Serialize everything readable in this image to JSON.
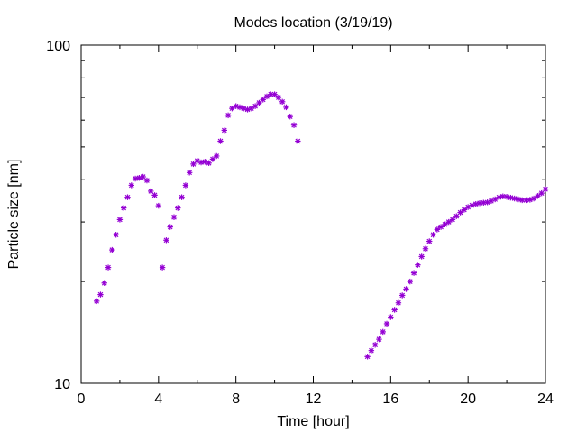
{
  "chart_data": {
    "type": "scatter",
    "title": "Modes location (3/19/19)",
    "xlabel": "Time [hour]",
    "ylabel": "Particle size [nm]",
    "xlim": [
      0,
      24
    ],
    "ylim": [
      10,
      100
    ],
    "yscale": "log",
    "grid": false,
    "marker": "asterisk",
    "x_ticks": [
      0,
      4,
      8,
      12,
      16,
      20,
      24
    ],
    "x_tick_labels": [
      "0",
      "4",
      "8",
      "12",
      "16",
      "20",
      "24"
    ],
    "y_ticks": [
      10,
      100
    ],
    "y_tick_labels": [
      "10",
      "100"
    ],
    "colors": {
      "series": "#9400d3"
    },
    "series": [
      {
        "segments": [
          {
            "x": [
              0.8,
              1.0,
              1.2,
              1.4,
              1.6,
              1.8,
              2.0,
              2.2,
              2.4,
              2.6,
              2.8,
              3.0,
              3.2,
              3.4,
              3.6,
              3.8,
              4.0
            ],
            "y": [
              17.5,
              18.3,
              19.8,
              22.0,
              24.8,
              27.5,
              30.5,
              33.0,
              35.5,
              38.5,
              40.3,
              40.5,
              40.8,
              39.8,
              37.0,
              36.0,
              33.5
            ]
          },
          {
            "x": [
              4.2,
              4.4,
              4.6,
              4.8,
              5.0,
              5.2,
              5.4,
              5.6,
              5.8,
              6.0,
              6.2,
              6.4,
              6.6,
              6.8,
              7.0,
              7.2,
              7.4,
              7.6,
              7.8,
              8.0,
              8.2,
              8.4,
              8.6,
              8.8,
              9.0,
              9.2,
              9.4,
              9.6,
              9.8,
              10.0,
              10.2,
              10.4,
              10.6,
              10.8,
              11.0,
              11.2
            ],
            "y": [
              22.0,
              26.5,
              29.0,
              31.0,
              33.0,
              35.5,
              38.5,
              42.0,
              44.5,
              45.5,
              45.0,
              45.2,
              44.8,
              46.0,
              47.0,
              52.0,
              56.0,
              62.0,
              65.0,
              66.0,
              65.5,
              65.0,
              64.5,
              65.0,
              66.0,
              67.5,
              69.0,
              70.5,
              71.5,
              71.5,
              70.0,
              68.0,
              65.5,
              61.5,
              58.0,
              52.0
            ]
          },
          {
            "x": [
              14.8,
              15.0,
              15.2,
              15.4,
              15.6,
              15.8,
              16.0,
              16.2,
              16.4,
              16.6,
              16.8,
              17.0,
              17.2,
              17.4,
              17.6,
              17.8,
              18.0,
              18.2,
              18.4,
              18.6,
              18.8,
              19.0,
              19.2,
              19.4,
              19.6,
              19.8,
              20.0,
              20.2,
              20.4,
              20.6,
              20.8,
              21.0,
              21.2,
              21.4,
              21.6,
              21.8,
              22.0,
              22.2,
              22.4,
              22.6,
              22.8,
              23.0,
              23.2,
              23.4,
              23.6,
              23.8,
              24.0
            ],
            "y": [
              12.0,
              12.5,
              13.0,
              13.5,
              14.2,
              15.0,
              15.7,
              16.5,
              17.3,
              18.2,
              19.0,
              20.0,
              21.2,
              22.4,
              23.7,
              25.0,
              26.3,
              27.5,
              28.5,
              29.0,
              29.5,
              30.0,
              30.5,
              31.2,
              32.0,
              32.6,
              33.2,
              33.6,
              33.9,
              34.1,
              34.2,
              34.3,
              34.6,
              35.0,
              35.5,
              35.7,
              35.6,
              35.4,
              35.2,
              35.0,
              34.8,
              34.8,
              34.9,
              35.2,
              35.8,
              36.5,
              37.5
            ]
          }
        ]
      }
    ]
  }
}
